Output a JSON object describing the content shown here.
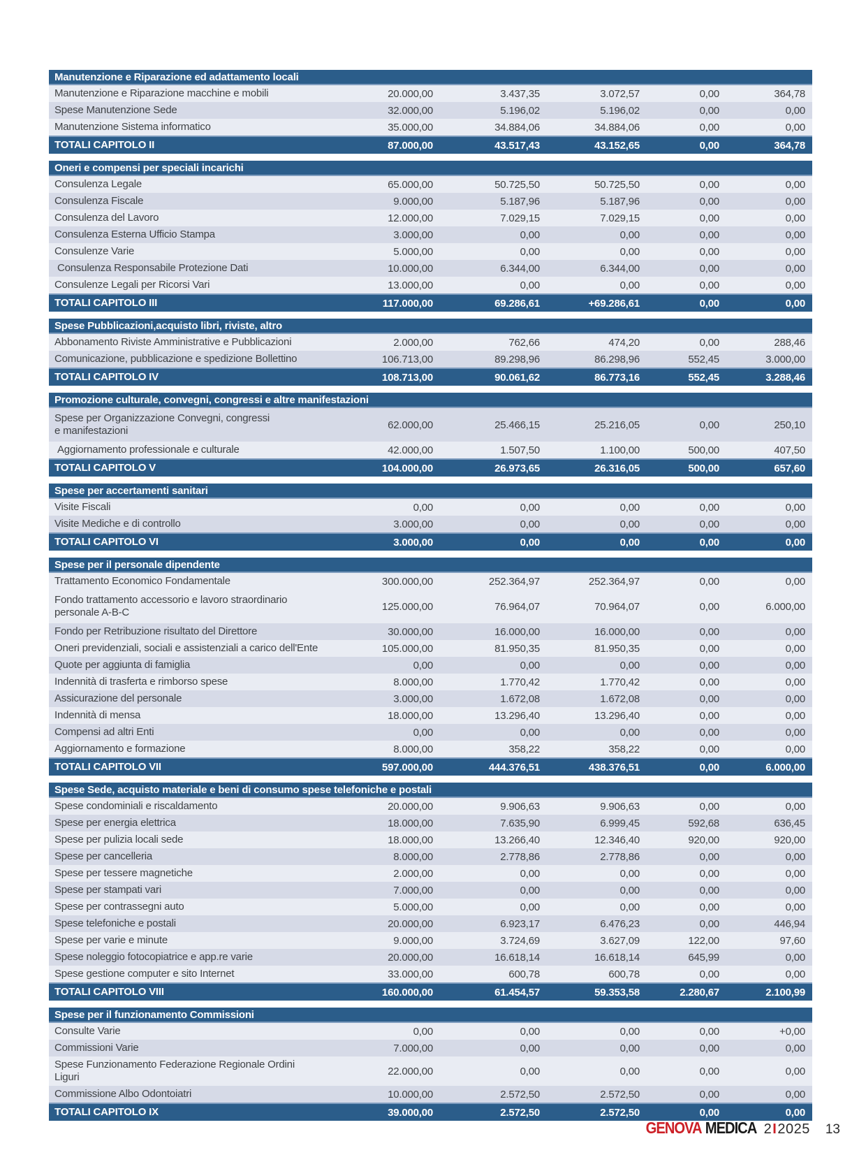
{
  "colors": {
    "bar_blue": "#2b5d8a",
    "divider_blue": "#7e9cbe",
    "row_light": "#e9ecf3",
    "row_dark": "#d6dae7",
    "text": "#3f4245",
    "footer_red": "#cc2027"
  },
  "footer": {
    "brand_red": "GENOVA",
    "brand_black": "MEDICA",
    "issue": "2",
    "issue_sep": "I",
    "year": "2025",
    "page_number": "13"
  },
  "table": {
    "sections": [
      {
        "title": "Manutenzione e Riparazione ed adattamento locali",
        "rows": [
          {
            "label": "Manutenzione e Riparazione macchine e mobili",
            "values": [
              "20.000,00",
              "3.437,35",
              "3.072,57",
              "0,00",
              "364,78"
            ],
            "shade": "light"
          },
          {
            "label": "Spese Manutenzione Sede",
            "values": [
              "32.000,00",
              "5.196,02",
              "5.196,02",
              "0,00",
              "0,00"
            ],
            "shade": "dark"
          },
          {
            "label": "Manutenzione Sistema informatico",
            "values": [
              "35.000,00",
              "34.884,06",
              "34.884,06",
              "0,00",
              "0,00"
            ],
            "shade": "light"
          }
        ],
        "total": {
          "label": "TOTALI CAPITOLO II",
          "values": [
            "87.000,00",
            "43.517,43",
            "43.152,65",
            "0,00",
            "364,78"
          ]
        }
      },
      {
        "title": "Oneri e compensi per speciali incarichi",
        "rows": [
          {
            "label": "Consulenza Legale",
            "values": [
              "65.000,00",
              "50.725,50",
              "50.725,50",
              "0,00",
              "0,00"
            ],
            "shade": "light"
          },
          {
            "label": "Consulenza Fiscale",
            "values": [
              "9.000,00",
              "5.187,96",
              "5.187,96",
              "0,00",
              "0,00"
            ],
            "shade": "dark"
          },
          {
            "label": "Consulenza del Lavoro",
            "values": [
              "12.000,00",
              "7.029,15",
              "7.029,15",
              "0,00",
              "0,00"
            ],
            "shade": "light"
          },
          {
            "label": "Consulenza Esterna Ufficio Stampa",
            "values": [
              "3.000,00",
              "0,00",
              "0,00",
              "0,00",
              "0,00"
            ],
            "shade": "dark"
          },
          {
            "label": "Consulenze Varie",
            "values": [
              "5.000,00",
              "0,00",
              "0,00",
              "0,00",
              "0,00"
            ],
            "shade": "light"
          },
          {
            "label": "Consulenza Responsabile Protezione Dati",
            "values": [
              "10.000,00",
              "6.344,00",
              "6.344,00",
              "0,00",
              "0,00"
            ],
            "shade": "dark",
            "indent": true
          },
          {
            "label": "Consulenze Legali per Ricorsi Vari",
            "values": [
              "13.000,00",
              "0,00",
              "0,00",
              "0,00",
              "0,00"
            ],
            "shade": "light"
          }
        ],
        "total": {
          "label": "TOTALI CAPITOLO III",
          "values": [
            "117.000,00",
            "69.286,61",
            "+69.286,61",
            "0,00",
            "0,00"
          ]
        }
      },
      {
        "title": "Spese Pubblicazioni,acquisto libri, riviste, altro",
        "rows": [
          {
            "label": "Abbonamento Riviste Amministrative e Pubblicazioni",
            "values": [
              "2.000,00",
              "762,66",
              "474,20",
              "0,00",
              "288,46"
            ],
            "shade": "light"
          },
          {
            "label": "Comunicazione, pubblicazione e spedizione Bollettino",
            "values": [
              "106.713,00",
              "89.298,96",
              "86.298,96",
              "552,45",
              "3.000,00"
            ],
            "shade": "dark"
          }
        ],
        "total": {
          "label": "TOTALI CAPITOLO IV",
          "values": [
            "108.713,00",
            "90.061,62",
            "86.773,16",
            "552,45",
            "3.288,46"
          ]
        }
      },
      {
        "title": "Promozione culturale, convegni, congressi e altre manifestazioni",
        "rows": [
          {
            "label": "Spese per Organizzazione Convegni, congressi",
            "label2": "e manifestazioni",
            "values": [
              "62.000,00",
              "25.466,15",
              "25.216,05",
              "0,00",
              "250,10"
            ],
            "shade": "dark"
          },
          {
            "label": "Aggiornamento professionale e culturale",
            "values": [
              "42.000,00",
              "1.507,50",
              "1.100,00",
              "500,00",
              "407,50"
            ],
            "shade": "light",
            "indent": true
          }
        ],
        "total": {
          "label": "TOTALI CAPITOLO V",
          "values": [
            "104.000,00",
            "26.973,65",
            "26.316,05",
            "500,00",
            "657,60"
          ]
        }
      },
      {
        "title": "Spese per accertamenti sanitari",
        "rows": [
          {
            "label": "Visite Fiscali",
            "values": [
              "0,00",
              "0,00",
              "0,00",
              "0,00",
              "0,00"
            ],
            "shade": "light"
          },
          {
            "label": "Visite Mediche e di controllo",
            "values": [
              "3.000,00",
              "0,00",
              "0,00",
              "0,00",
              "0,00"
            ],
            "shade": "dark"
          }
        ],
        "total": {
          "label": "TOTALI CAPITOLO VI",
          "values": [
            "3.000,00",
            "0,00",
            "0,00",
            "0,00",
            "0,00"
          ]
        }
      },
      {
        "title": "Spese per il personale dipendente",
        "rows": [
          {
            "label": "Trattamento Economico Fondamentale",
            "values": [
              "300.000,00",
              "252.364,97",
              "252.364,97",
              "0,00",
              "0,00"
            ],
            "shade": "light"
          },
          {
            "label": "Fondo trattamento accessorio e lavoro straordinario",
            "label2": "personale A-B-C",
            "values": [
              "125.000,00",
              "76.964,07",
              "70.964,07",
              "0,00",
              "6.000,00"
            ],
            "shade": "light"
          },
          {
            "label": "Fondo per Retribuzione risultato del Direttore",
            "values": [
              "30.000,00",
              "16.000,00",
              "16.000,00",
              "0,00",
              "0,00"
            ],
            "shade": "dark"
          },
          {
            "label": "Oneri previdenziali, sociali e assistenziali a carico dell'Ente",
            "values": [
              "105.000,00",
              "81.950,35",
              "81.950,35",
              "0,00",
              "0,00"
            ],
            "shade": "light"
          },
          {
            "label": "Quote per aggiunta di famiglia",
            "values": [
              "0,00",
              "0,00",
              "0,00",
              "0,00",
              "0,00"
            ],
            "shade": "dark"
          },
          {
            "label": "Indennità di trasferta e rimborso spese",
            "values": [
              "8.000,00",
              "1.770,42",
              "1.770,42",
              "0,00",
              "0,00"
            ],
            "shade": "light"
          },
          {
            "label": "Assicurazione del personale",
            "values": [
              "3.000,00",
              "1.672,08",
              "1.672,08",
              "0,00",
              "0,00"
            ],
            "shade": "dark"
          },
          {
            "label": "Indennità di mensa",
            "values": [
              "18.000,00",
              "13.296,40",
              "13.296,40",
              "0,00",
              "0,00"
            ],
            "shade": "light"
          },
          {
            "label": "Compensi ad altri Enti",
            "values": [
              "0,00",
              "0,00",
              "0,00",
              "0,00",
              "0,00"
            ],
            "shade": "dark"
          },
          {
            "label": "Aggiornamento e formazione",
            "values": [
              "8.000,00",
              "358,22",
              "358,22",
              "0,00",
              "0,00"
            ],
            "shade": "light"
          }
        ],
        "total": {
          "label": "TOTALI CAPITOLO VII",
          "values": [
            "597.000,00",
            "444.376,51",
            "438.376,51",
            "0,00",
            "6.000,00"
          ]
        }
      },
      {
        "title": "Spese Sede, acquisto materiale e beni di consumo spese telefoniche e postali",
        "rows": [
          {
            "label": "Spese condominiali e  riscaldamento",
            "values": [
              "20.000,00",
              "9.906,63",
              "9.906,63",
              "0,00",
              "0,00"
            ],
            "shade": "light"
          },
          {
            "label": "Spese per energia elettrica",
            "values": [
              "18.000,00",
              "7.635,90",
              "6.999,45",
              "592,68",
              "636,45"
            ],
            "shade": "dark"
          },
          {
            "label": "Spese per pulizia locali sede",
            "values": [
              "18.000,00",
              "13.266,40",
              "12.346,40",
              "920,00",
              "920,00"
            ],
            "shade": "light"
          },
          {
            "label": "Spese per cancelleria",
            "values": [
              "8.000,00",
              "2.778,86",
              "2.778,86",
              "0,00",
              "0,00"
            ],
            "shade": "dark"
          },
          {
            "label": "Spese per tessere magnetiche",
            "values": [
              "2.000,00",
              "0,00",
              "0,00",
              "0,00",
              "0,00"
            ],
            "shade": "light"
          },
          {
            "label": "Spese per stampati vari",
            "values": [
              "7.000,00",
              "0,00",
              "0,00",
              "0,00",
              "0,00"
            ],
            "shade": "dark"
          },
          {
            "label": "Spese per contrassegni auto",
            "values": [
              "5.000,00",
              "0,00",
              "0,00",
              "0,00",
              "0,00"
            ],
            "shade": "light"
          },
          {
            "label": "Spese telefoniche e postali",
            "values": [
              "20.000,00",
              "6.923,17",
              "6.476,23",
              "0,00",
              "446,94"
            ],
            "shade": "dark"
          },
          {
            "label": "Spese per varie e minute",
            "values": [
              "9.000,00",
              "3.724,69",
              "3.627,09",
              "122,00",
              "97,60"
            ],
            "shade": "light"
          },
          {
            "label": "Spese noleggio fotocopiatrice e app.re varie",
            "values": [
              "20.000,00",
              "16.618,14",
              "16.618,14",
              "645,99",
              "0,00"
            ],
            "shade": "dark"
          },
          {
            "label": "Spese gestione computer e  sito Internet",
            "values": [
              "33.000,00",
              "600,78",
              "600,78",
              "0,00",
              "0,00"
            ],
            "shade": "light"
          }
        ],
        "total": {
          "label": "TOTALI CAPITOLO VIII",
          "values": [
            "160.000,00",
            "61.454,57",
            "59.353,58",
            "2.280,67",
            "2.100,99"
          ]
        }
      },
      {
        "title": "Spese per il funzionamento Commissioni",
        "rows": [
          {
            "label": "Consulte Varie",
            "values": [
              "0,00",
              "0,00",
              "0,00",
              "0,00",
              "+0,00"
            ],
            "shade": "light"
          },
          {
            "label": "Commissioni Varie",
            "values": [
              "7.000,00",
              "0,00",
              "0,00",
              "0,00",
              "0,00"
            ],
            "shade": "dark"
          },
          {
            "label": "Spese Funzionamento Federazione Regionale Ordini Liguri",
            "values": [
              "22.000,00",
              "0,00",
              "0,00",
              "0,00",
              "0,00"
            ],
            "shade": "light"
          },
          {
            "label": "Commissione Albo Odontoiatri",
            "values": [
              "10.000,00",
              "2.572,50",
              "2.572,50",
              "0,00",
              "0,00"
            ],
            "shade": "dark"
          }
        ],
        "total": {
          "label": "TOTALI CAPITOLO IX",
          "values": [
            "39.000,00",
            "2.572,50",
            "2.572,50",
            "0,00",
            "0,00"
          ]
        }
      }
    ]
  }
}
